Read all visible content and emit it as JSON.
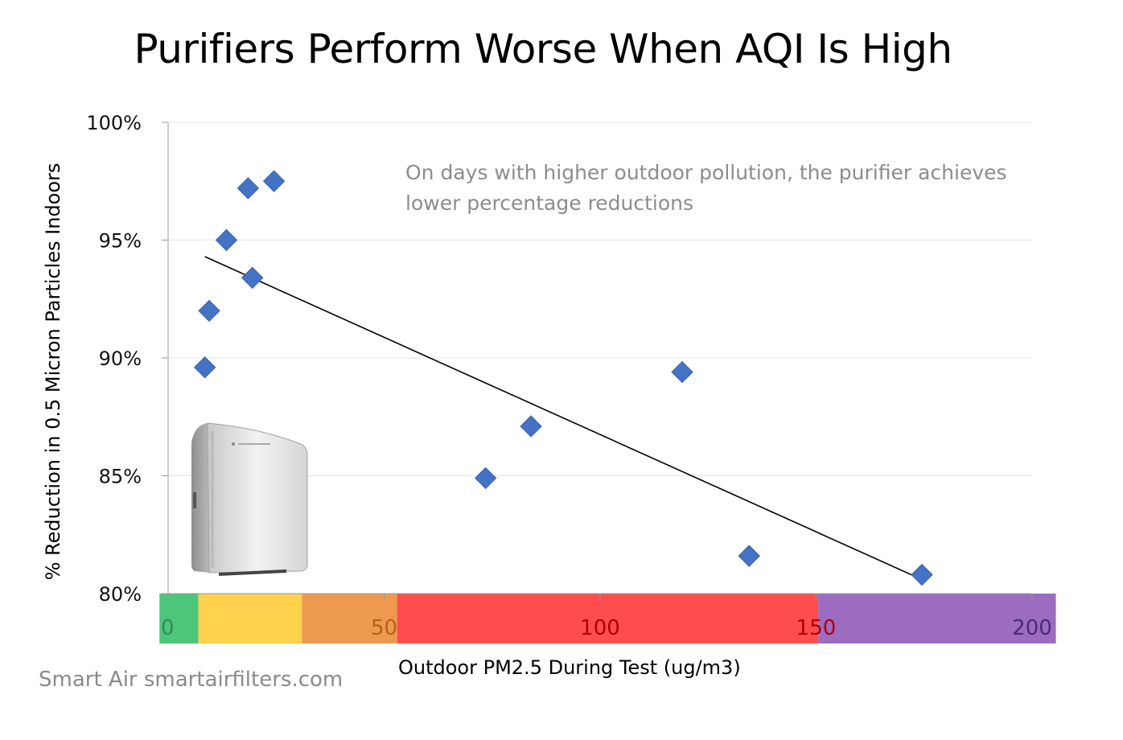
{
  "chart_data": {
    "type": "scatter",
    "title": "Purifiers Perform Worse When AQI Is High",
    "xlabel": "Outdoor PM2.5 During Test (ug/m3)",
    "ylabel": "% Reduction in 0.5 Micron Particles Indoors",
    "xlim": [
      0,
      200
    ],
    "ylim": [
      80,
      100
    ],
    "x_ticks": [
      "0",
      "50",
      "100",
      "150",
      "200"
    ],
    "y_ticks": [
      "80%",
      "85%",
      "90%",
      "95%",
      "100%"
    ],
    "grid": true,
    "points": [
      {
        "x": 8.5,
        "y": 89.6
      },
      {
        "x": 9.5,
        "y": 92.0
      },
      {
        "x": 13.5,
        "y": 95.0
      },
      {
        "x": 18.5,
        "y": 97.2
      },
      {
        "x": 19.5,
        "y": 93.4
      },
      {
        "x": 24.5,
        "y": 97.5
      },
      {
        "x": 73.5,
        "y": 84.9
      },
      {
        "x": 84,
        "y": 87.1
      },
      {
        "x": 119,
        "y": 89.4
      },
      {
        "x": 134.5,
        "y": 81.6
      },
      {
        "x": 174.5,
        "y": 80.8
      }
    ],
    "trendline": {
      "x": [
        8.5,
        174.5
      ],
      "y": [
        94.3,
        80.6
      ]
    },
    "aqi_bands": [
      {
        "from": -2,
        "to": 7,
        "color": "#4dc57a",
        "tick_color": "#2e8b57"
      },
      {
        "from": 7,
        "to": 31,
        "color": "#ffd24d",
        "tick_color": "#b8860b"
      },
      {
        "from": 31,
        "to": 53,
        "color": "#ed9a50",
        "tick_color": "#b85f18"
      },
      {
        "from": 53,
        "to": 150.5,
        "color": "#ff4d4d",
        "tick_color": "#b00000"
      },
      {
        "from": 150.5,
        "to": 205.5,
        "color": "#9b6cc0",
        "tick_color": "#4b2a7a"
      }
    ],
    "annotation": "On days with higher outdoor pollution, the purifier achieves lower percentage reductions",
    "marker_color": "#4472c4"
  },
  "footer": {
    "credit": "Smart Air smartairfilters.com"
  },
  "image": {
    "icon": "air-purifier-icon"
  }
}
